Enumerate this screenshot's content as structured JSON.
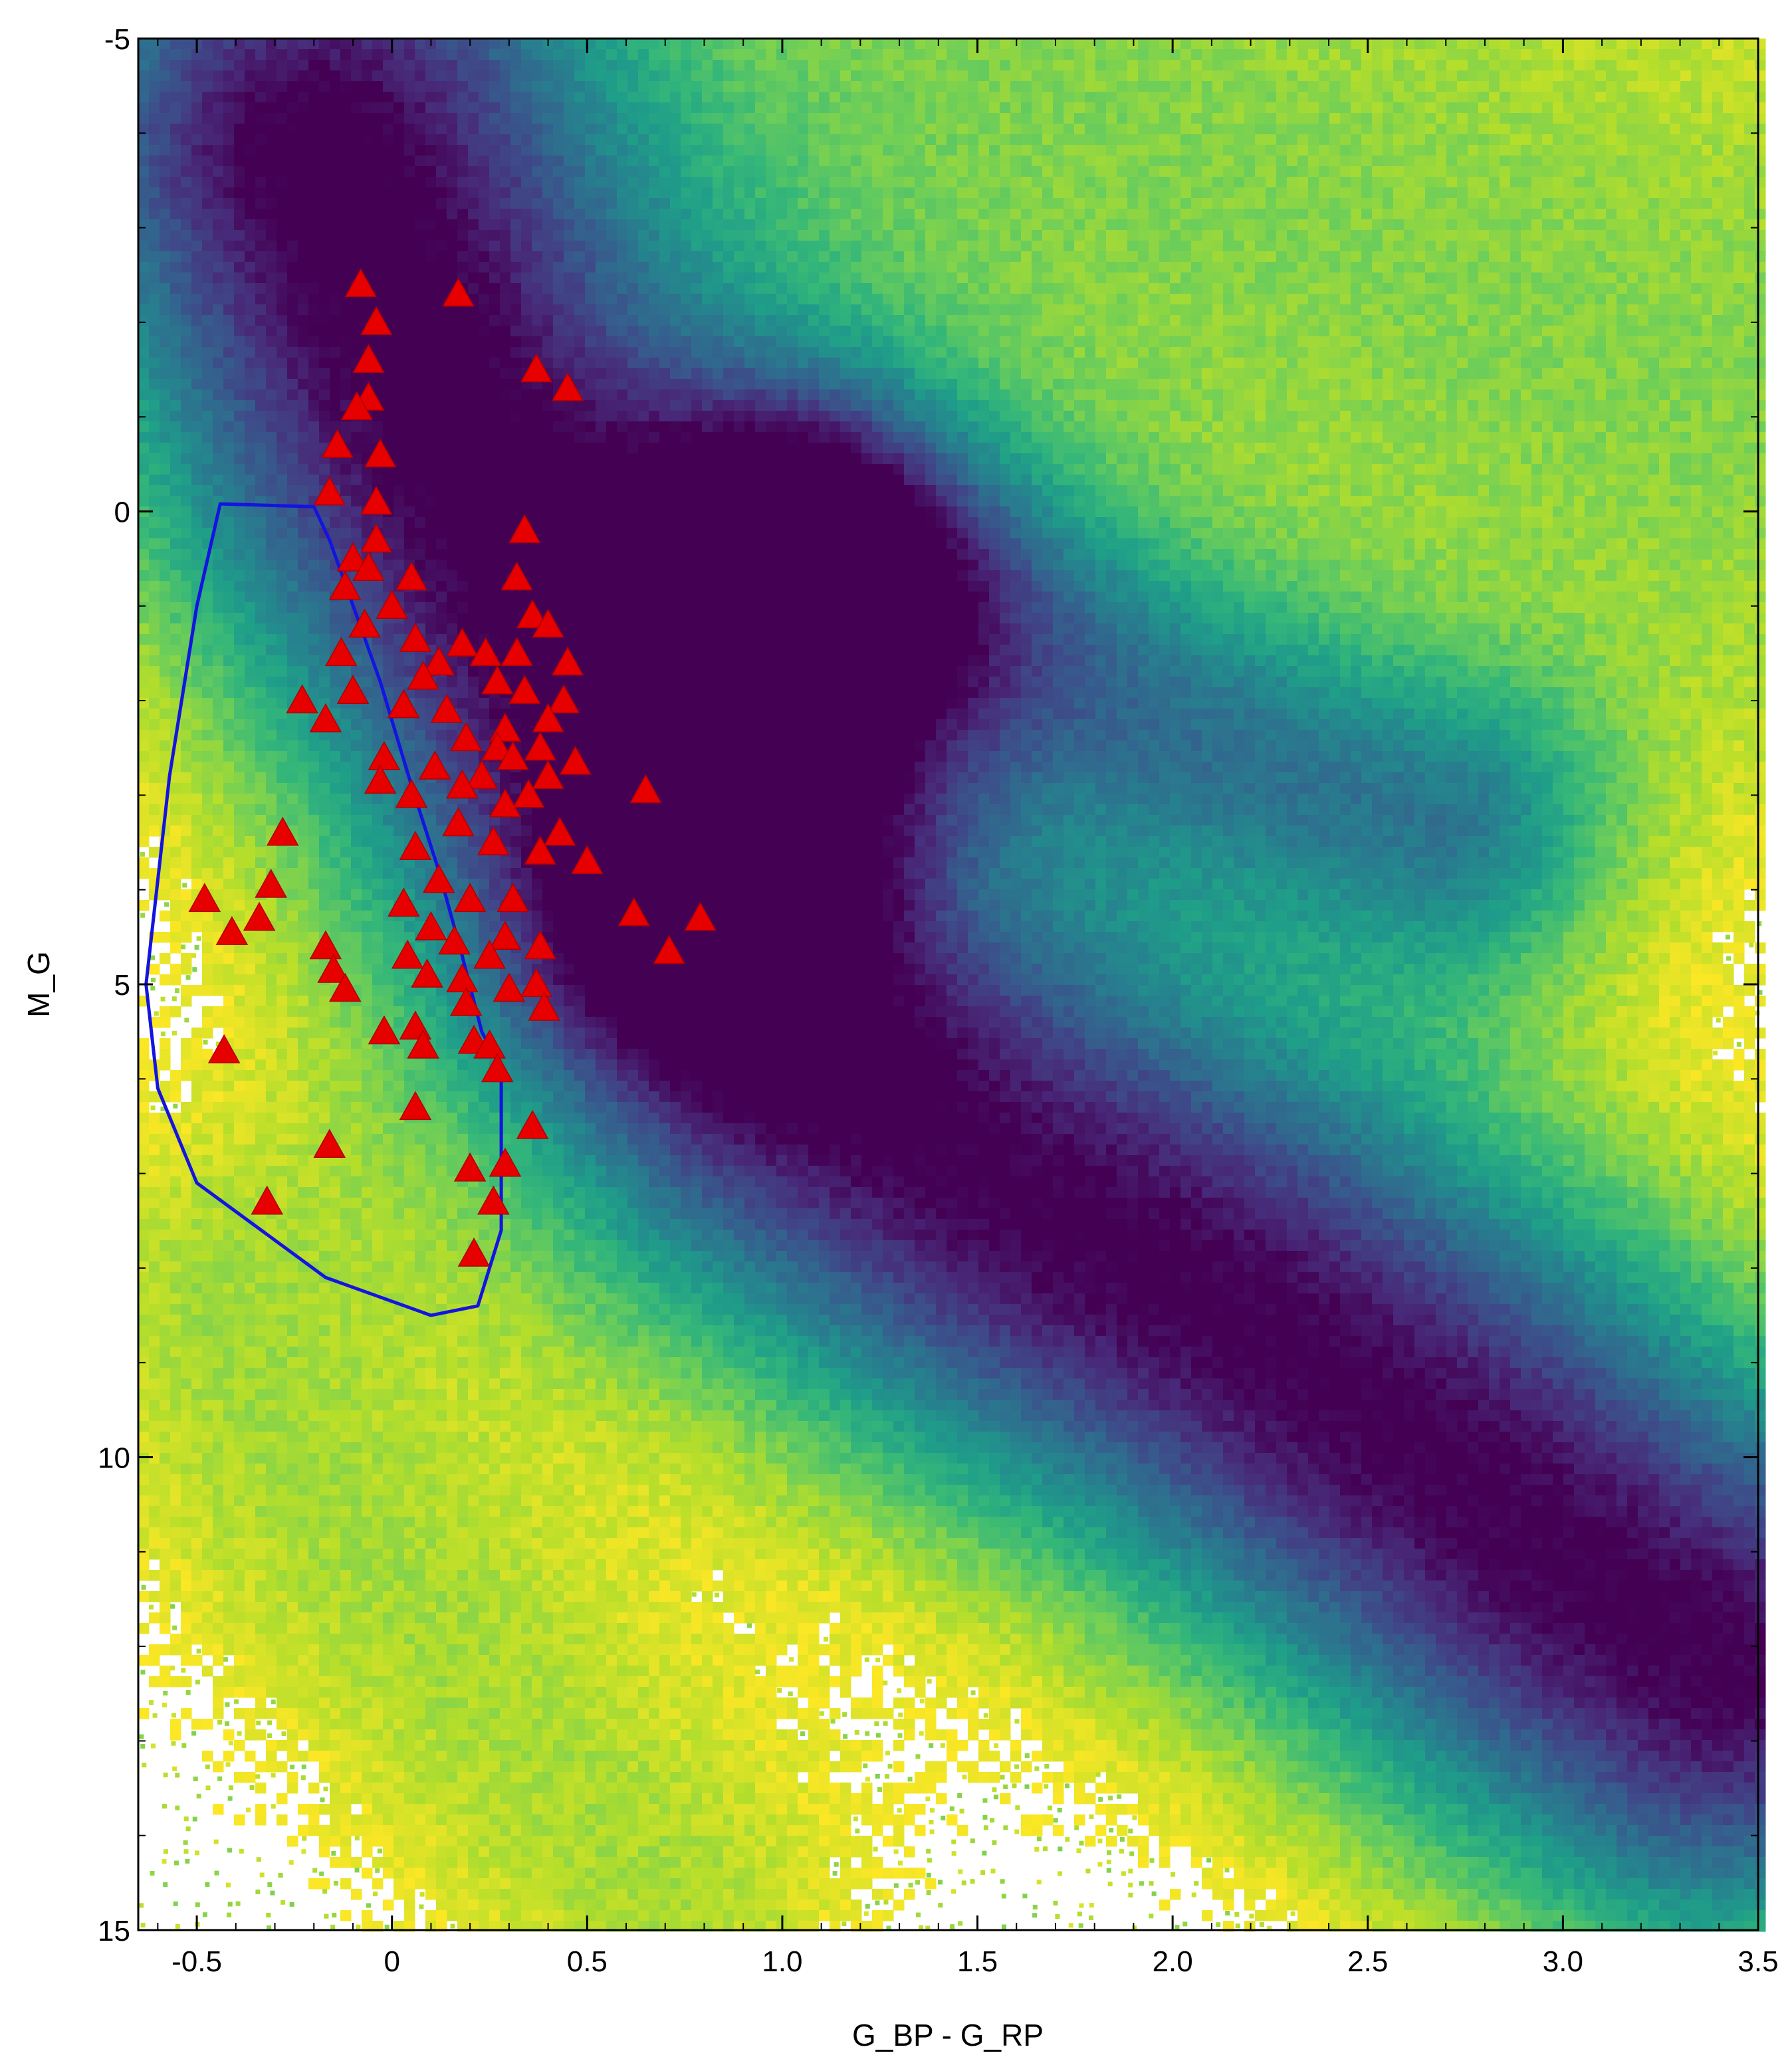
{
  "chart_data": {
    "type": "scatter",
    "xlabel": "G_BP - G_RP",
    "ylabel": "M_G",
    "xlim": [
      -0.65,
      3.5
    ],
    "ylim": [
      15,
      -5
    ],
    "y_inverted": true,
    "grid": false,
    "x_ticks": [
      {
        "v": -0.5,
        "label": "-0.5"
      },
      {
        "v": 0,
        "label": "0"
      },
      {
        "v": 0.5,
        "label": "0.5"
      },
      {
        "v": 1.0,
        "label": "1.0"
      },
      {
        "v": 1.5,
        "label": "1.5"
      },
      {
        "v": 2.0,
        "label": "2.0"
      },
      {
        "v": 2.5,
        "label": "2.5"
      },
      {
        "v": 3.0,
        "label": "3.0"
      },
      {
        "v": 3.5,
        "label": "3.5"
      }
    ],
    "y_ticks": [
      {
        "v": -5,
        "label": "-5"
      },
      {
        "v": 0,
        "label": "0"
      },
      {
        "v": 5,
        "label": "5"
      },
      {
        "v": 10,
        "label": "10"
      },
      {
        "v": 15,
        "label": "15"
      }
    ],
    "density_colormap": "viridis",
    "density_ridges": [
      {
        "points": [
          [
            -0.2,
            -3.8
          ],
          [
            0.1,
            -1
          ],
          [
            0.5,
            1.8
          ],
          [
            0.8,
            4.2
          ],
          [
            1.1,
            5.8
          ],
          [
            1.6,
            7.2
          ],
          [
            2.2,
            8.6
          ],
          [
            2.7,
            10.1
          ],
          [
            3.1,
            11.4
          ],
          [
            3.4,
            12.2
          ]
        ],
        "width": 0.55,
        "weight": 1
      },
      {
        "points": [
          [
            1.1,
            0.4
          ],
          [
            1.5,
            1.2
          ],
          [
            2.0,
            2.2
          ],
          [
            2.4,
            2.9
          ],
          [
            2.7,
            3.3
          ]
        ],
        "width": 0.3,
        "weight": 0.5
      },
      {
        "points": [
          [
            1.1,
            0.6
          ],
          [
            1.05,
            1.7
          ],
          [
            1.0,
            2.5
          ],
          [
            0.9,
            3.4
          ],
          [
            0.8,
            4.2
          ]
        ],
        "width": 0.3,
        "weight": 0.45
      },
      {
        "points": [
          [
            -0.45,
            8.5
          ],
          [
            -0.25,
            10.2
          ],
          [
            -0.05,
            11.2
          ],
          [
            0.2,
            12.4
          ],
          [
            0.5,
            13.8
          ],
          [
            0.7,
            14.6
          ]
        ],
        "width": 0.4,
        "weight": 0.2
      },
      {
        "points": [
          [
            1.6,
            -4.5
          ],
          [
            2.2,
            -3.2
          ],
          [
            2.9,
            -2
          ],
          [
            3.4,
            -1.2
          ]
        ],
        "width": 0.9,
        "weight": 0.25
      }
    ],
    "polygon_region": [
      [
        -0.44,
        -0.08
      ],
      [
        -0.2,
        -0.05
      ],
      [
        -0.16,
        0.3
      ],
      [
        -0.03,
        1.8
      ],
      [
        0.05,
        2.9
      ],
      [
        0.12,
        3.8
      ],
      [
        0.18,
        4.7
      ],
      [
        0.23,
        5.5
      ],
      [
        0.28,
        5.9
      ],
      [
        0.28,
        7.6
      ],
      [
        0.22,
        8.4
      ],
      [
        0.1,
        8.5
      ],
      [
        -0.17,
        8.1
      ],
      [
        -0.5,
        7.1
      ],
      [
        -0.6,
        6.1
      ],
      [
        -0.63,
        5.0
      ],
      [
        -0.57,
        2.8
      ],
      [
        -0.5,
        1.0
      ]
    ],
    "triangle_points": [
      [
        -0.08,
        -2.4
      ],
      [
        0.17,
        -2.3
      ],
      [
        -0.04,
        -2.0
      ],
      [
        -0.06,
        -1.6
      ],
      [
        0.37,
        -1.5
      ],
      [
        0.45,
        -1.3
      ],
      [
        -0.06,
        -1.2
      ],
      [
        -0.09,
        -1.1
      ],
      [
        -0.14,
        -0.7
      ],
      [
        -0.03,
        -0.6
      ],
      [
        -0.16,
        -0.2
      ],
      [
        -0.04,
        -0.1
      ],
      [
        0.34,
        0.2
      ],
      [
        -0.04,
        0.3
      ],
      [
        -0.1,
        0.5
      ],
      [
        -0.06,
        0.6
      ],
      [
        0.05,
        0.7
      ],
      [
        0.32,
        0.7
      ],
      [
        -0.12,
        0.8
      ],
      [
        0.0,
        1.0
      ],
      [
        0.36,
        1.1
      ],
      [
        0.4,
        1.2
      ],
      [
        -0.07,
        1.2
      ],
      [
        0.06,
        1.35
      ],
      [
        0.18,
        1.4
      ],
      [
        0.32,
        1.5
      ],
      [
        -0.13,
        1.5
      ],
      [
        0.24,
        1.5
      ],
      [
        0.12,
        1.6
      ],
      [
        0.45,
        1.6
      ],
      [
        0.08,
        1.75
      ],
      [
        0.27,
        1.8
      ],
      [
        -0.1,
        1.9
      ],
      [
        0.34,
        1.9
      ],
      [
        -0.23,
        2.0
      ],
      [
        0.44,
        2.0
      ],
      [
        0.03,
        2.05
      ],
      [
        0.14,
        2.1
      ],
      [
        -0.17,
        2.2
      ],
      [
        0.29,
        2.3
      ],
      [
        0.4,
        2.2
      ],
      [
        0.19,
        2.4
      ],
      [
        0.27,
        2.5
      ],
      [
        0.38,
        2.5
      ],
      [
        -0.02,
        2.6
      ],
      [
        0.31,
        2.6
      ],
      [
        0.47,
        2.65
      ],
      [
        0.11,
        2.7
      ],
      [
        0.23,
        2.8
      ],
      [
        0.4,
        2.8
      ],
      [
        -0.03,
        2.85
      ],
      [
        0.18,
        2.9
      ],
      [
        0.65,
        2.95
      ],
      [
        0.05,
        3.0
      ],
      [
        0.35,
        3.0
      ],
      [
        0.29,
        3.1
      ],
      [
        -0.28,
        3.4
      ],
      [
        0.17,
        3.3
      ],
      [
        0.43,
        3.4
      ],
      [
        0.06,
        3.55
      ],
      [
        0.26,
        3.5
      ],
      [
        0.38,
        3.6
      ],
      [
        0.5,
        3.7
      ],
      [
        -0.31,
        3.95
      ],
      [
        0.12,
        3.9
      ],
      [
        0.31,
        4.1
      ],
      [
        -0.48,
        4.1
      ],
      [
        0.03,
        4.15
      ],
      [
        0.2,
        4.1
      ],
      [
        -0.34,
        4.3
      ],
      [
        0.62,
        4.25
      ],
      [
        0.79,
        4.3
      ],
      [
        0.1,
        4.4
      ],
      [
        -0.41,
        4.45
      ],
      [
        0.29,
        4.5
      ],
      [
        0.16,
        4.55
      ],
      [
        -0.17,
        4.6
      ],
      [
        0.38,
        4.6
      ],
      [
        0.71,
        4.65
      ],
      [
        0.04,
        4.7
      ],
      [
        0.25,
        4.7
      ],
      [
        -0.15,
        4.85
      ],
      [
        0.09,
        4.9
      ],
      [
        0.18,
        4.95
      ],
      [
        -0.12,
        5.05
      ],
      [
        0.37,
        5.0
      ],
      [
        0.3,
        5.05
      ],
      [
        0.19,
        5.2
      ],
      [
        0.39,
        5.25
      ],
      [
        0.06,
        5.45
      ],
      [
        -0.02,
        5.5
      ],
      [
        0.21,
        5.6
      ],
      [
        0.08,
        5.65
      ],
      [
        -0.43,
        5.7
      ],
      [
        0.25,
        5.65
      ],
      [
        0.27,
        5.9
      ],
      [
        0.06,
        6.3
      ],
      [
        0.36,
        6.5
      ],
      [
        -0.16,
        6.7
      ],
      [
        0.29,
        6.9
      ],
      [
        0.2,
        6.95
      ],
      [
        -0.32,
        7.3
      ],
      [
        0.26,
        7.3
      ],
      [
        0.21,
        7.85
      ]
    ]
  }
}
